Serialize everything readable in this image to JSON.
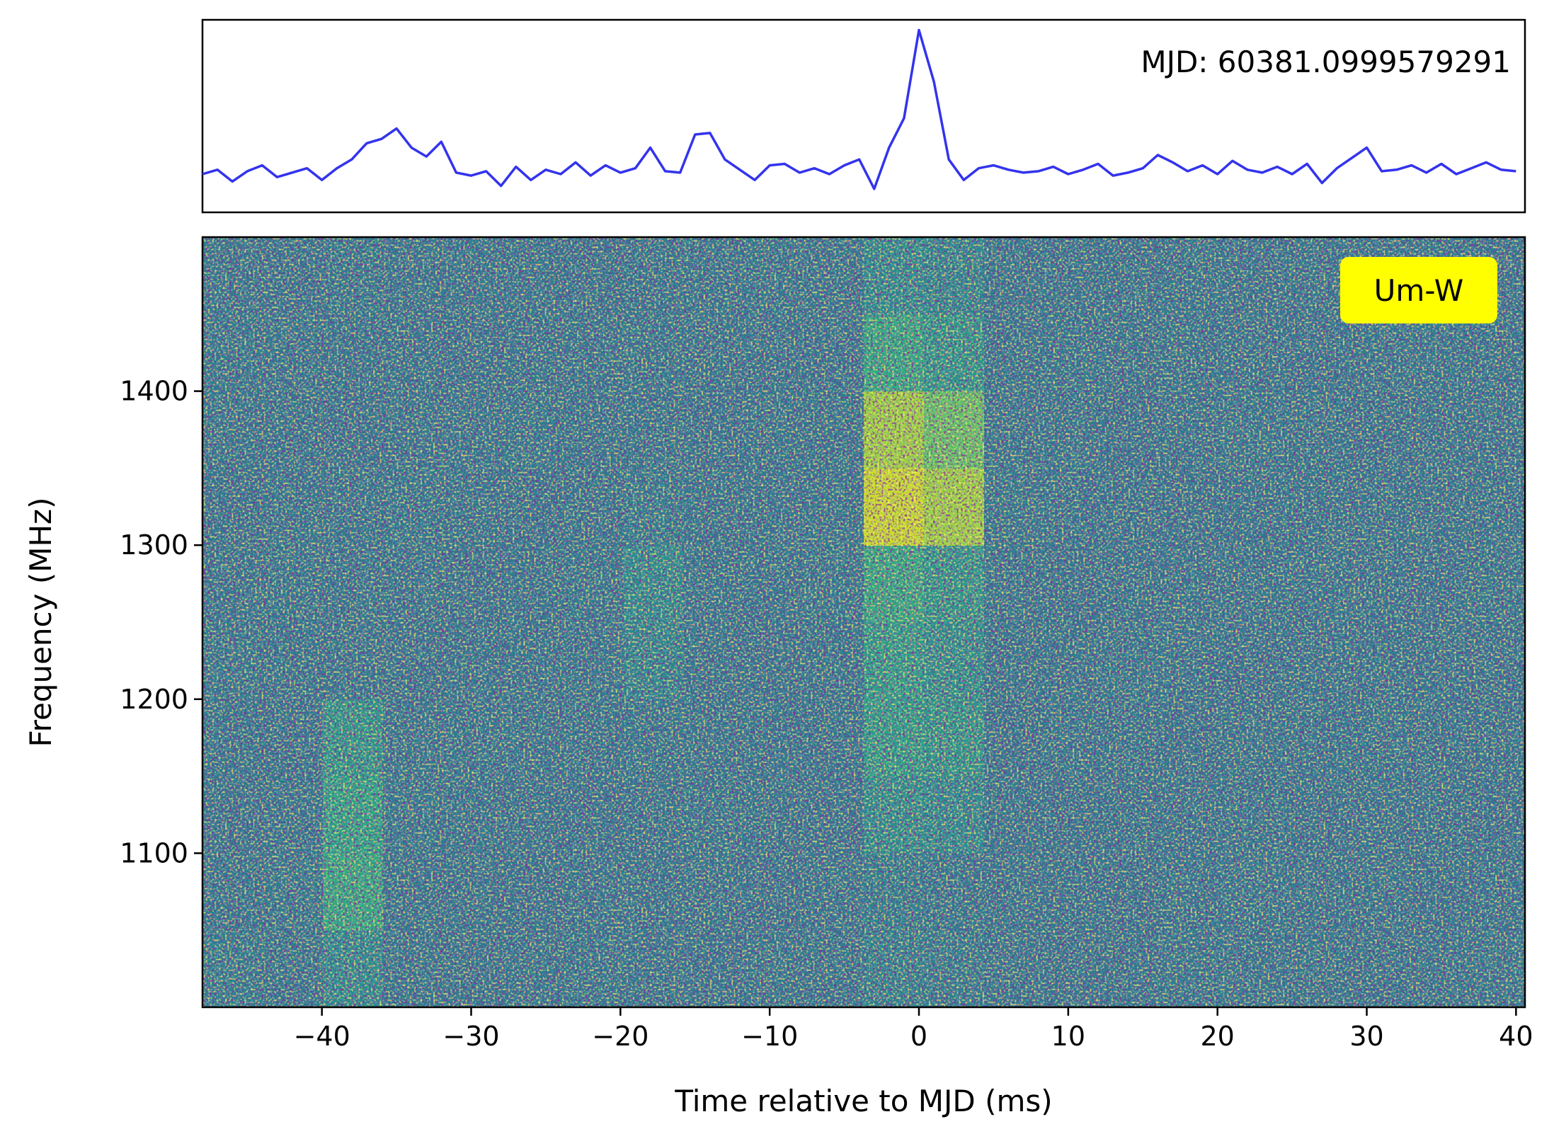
{
  "chart_data": [
    {
      "type": "line",
      "annotation": "MJD: 60381.0999579291",
      "color": "#3333ee",
      "xlim": [
        -48,
        40.6
      ],
      "ylim": [
        -2.4,
        10.7
      ],
      "x": [
        -48,
        -47,
        -46,
        -45,
        -44,
        -43,
        -42,
        -41,
        -40,
        -39,
        -38,
        -37,
        -36,
        -35,
        -34,
        -33,
        -32,
        -31,
        -30,
        -29,
        -28,
        -27,
        -26,
        -25,
        -24,
        -23,
        -22,
        -21,
        -20,
        -19,
        -18,
        -17,
        -16,
        -15,
        -14,
        -13,
        -12,
        -11,
        -10,
        -9,
        -8,
        -7,
        -6,
        -5,
        -4,
        -3,
        -2,
        -1,
        0,
        1,
        2,
        3,
        4,
        5,
        6,
        7,
        8,
        9,
        10,
        11,
        12,
        13,
        14,
        15,
        16,
        17,
        18,
        19,
        20,
        21,
        22,
        23,
        24,
        25,
        26,
        27,
        28,
        29,
        30,
        31,
        32,
        33,
        34,
        35,
        36,
        37,
        38,
        39,
        40
      ],
      "values": [
        0.2,
        0.5,
        -0.3,
        0.4,
        0.8,
        0,
        0.3,
        0.6,
        -0.2,
        0.6,
        1.2,
        2.3,
        2.6,
        3.3,
        2.0,
        1.4,
        2.4,
        0.3,
        0.1,
        0.4,
        -0.6,
        0.7,
        -0.2,
        0.5,
        0.2,
        1.0,
        0.1,
        0.8,
        0.3,
        0.6,
        2.0,
        0.4,
        0.3,
        2.9,
        3.0,
        1.2,
        0.5,
        -0.2,
        0.8,
        0.9,
        0.3,
        0.6,
        0.2,
        0.8,
        1.2,
        -0.8,
        2.0,
        4.0,
        10,
        6.5,
        1.2,
        -0.2,
        0.6,
        0.8,
        0.5,
        0.3,
        0.4,
        0.7,
        0.2,
        0.5,
        0.9,
        0.1,
        0.3,
        0.6,
        1.5,
        1.0,
        0.4,
        0.8,
        0.2,
        1.1,
        0.5,
        0.3,
        0.7,
        0.2,
        0.9,
        -0.4,
        0.6,
        1.3,
        2.0,
        0.4,
        0.5,
        0.8,
        0.3,
        0.9,
        0.2,
        0.6,
        1.0,
        0.5,
        0.4
      ]
    },
    {
      "type": "heatmap",
      "annotation": "Um-W",
      "xlabel": "Time relative to MJD (ms)",
      "ylabel": "Frequency (MHz)",
      "xlim": [
        -48,
        40.6
      ],
      "ylim": [
        1000,
        1500
      ],
      "zlim": [
        0,
        1
      ],
      "xticks": [
        {
          "value": -40,
          "label": "−40"
        },
        {
          "value": -30,
          "label": "−30"
        },
        {
          "value": -20,
          "label": "−20"
        },
        {
          "value": -10,
          "label": "−10"
        },
        0,
        10,
        20,
        30,
        40
      ],
      "yticks": [
        1100,
        1200,
        1300,
        1400
      ],
      "z": [
        [
          0.44,
          0.42,
          0.5,
          0.42,
          0.41,
          0.42,
          0.43,
          0.42,
          0.41,
          0.42,
          0.42,
          0.46,
          0.44,
          0.42,
          0.41,
          0.42,
          0.43,
          0.42,
          0.42,
          0.41,
          0.42,
          0.43
        ],
        [
          0.42,
          0.43,
          0.62,
          0.42,
          0.42,
          0.41,
          0.42,
          0.42,
          0.42,
          0.41,
          0.42,
          0.45,
          0.43,
          0.42,
          0.42,
          0.41,
          0.42,
          0.43,
          0.42,
          0.42,
          0.41,
          0.42
        ],
        [
          0.41,
          0.42,
          0.6,
          0.43,
          0.42,
          0.42,
          0.41,
          0.42,
          0.43,
          0.42,
          0.41,
          0.52,
          0.5,
          0.42,
          0.41,
          0.42,
          0.42,
          0.42,
          0.41,
          0.42,
          0.42,
          0.41
        ],
        [
          0.42,
          0.41,
          0.55,
          0.42,
          0.43,
          0.42,
          0.42,
          0.43,
          0.42,
          0.42,
          0.42,
          0.58,
          0.55,
          0.41,
          0.42,
          0.42,
          0.41,
          0.42,
          0.42,
          0.43,
          0.42,
          0.42
        ],
        [
          0.43,
          0.42,
          0.42,
          0.41,
          0.42,
          0.42,
          0.42,
          0.48,
          0.42,
          0.41,
          0.42,
          0.58,
          0.52,
          0.42,
          0.42,
          0.43,
          0.42,
          0.41,
          0.42,
          0.42,
          0.42,
          0.41
        ],
        [
          0.42,
          0.43,
          0.42,
          0.42,
          0.41,
          0.42,
          0.43,
          0.5,
          0.42,
          0.42,
          0.43,
          0.62,
          0.55,
          0.42,
          0.41,
          0.42,
          0.42,
          0.42,
          0.43,
          0.42,
          0.41,
          0.43
        ],
        [
          0.41,
          0.42,
          0.42,
          0.43,
          0.42,
          0.41,
          0.42,
          0.44,
          0.42,
          0.42,
          0.42,
          0.92,
          0.85,
          0.43,
          0.42,
          0.42,
          0.41,
          0.42,
          0.42,
          0.42,
          0.42,
          0.42
        ],
        [
          0.42,
          0.42,
          0.41,
          0.42,
          0.42,
          0.43,
          0.42,
          0.42,
          0.41,
          0.42,
          0.42,
          0.85,
          0.75,
          0.42,
          0.42,
          0.41,
          0.42,
          0.43,
          0.42,
          0.41,
          0.42,
          0.42
        ],
        [
          0.43,
          0.42,
          0.42,
          0.42,
          0.41,
          0.42,
          0.42,
          0.43,
          0.42,
          0.42,
          0.41,
          0.62,
          0.55,
          0.42,
          0.43,
          0.42,
          0.42,
          0.42,
          0.41,
          0.42,
          0.43,
          0.42
        ],
        [
          0.42,
          0.41,
          0.43,
          0.42,
          0.42,
          0.42,
          0.41,
          0.42,
          0.42,
          0.43,
          0.42,
          0.5,
          0.48,
          0.42,
          0.42,
          0.42,
          0.43,
          0.41,
          0.42,
          0.42,
          0.42,
          0.41
        ]
      ]
    }
  ]
}
